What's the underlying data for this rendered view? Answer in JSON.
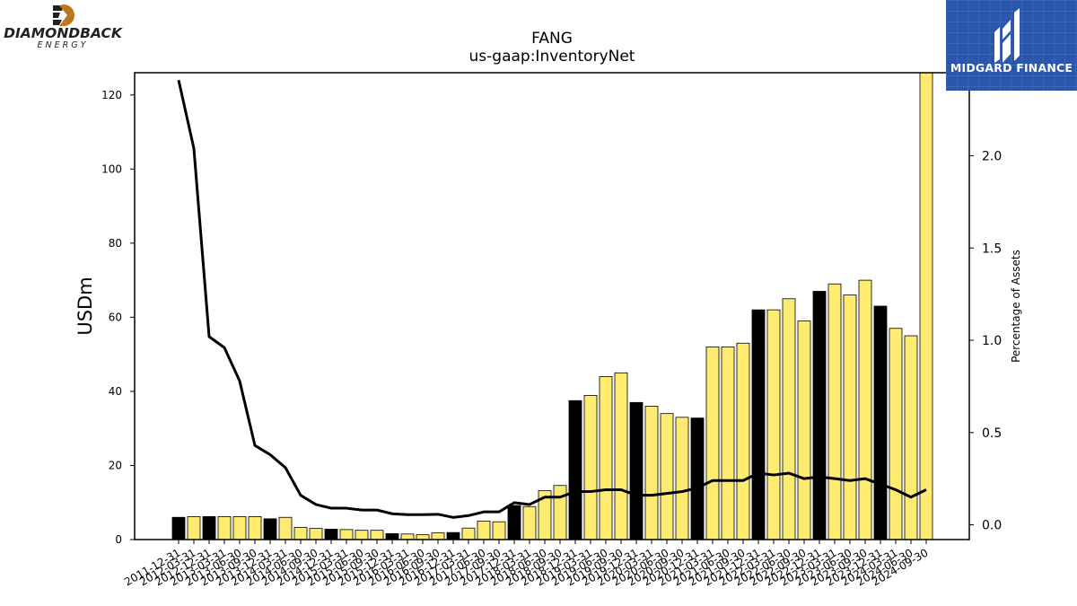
{
  "brand_left": {
    "name": "DIAMONDBACK",
    "sub": "ENERGY"
  },
  "brand_right": {
    "name": "MIDGARD FINANCE"
  },
  "chart_data": {
    "type": "bar",
    "title": "FANG",
    "subtitle": "us-gaap:InventoryNet",
    "ylabel": "USDm",
    "y2label": "Percentage of Assets",
    "ylim": [
      0,
      126
    ],
    "y2lim": [
      -0.08,
      2.45
    ],
    "yticks": [
      0,
      20,
      40,
      60,
      80,
      100,
      120
    ],
    "y2ticks": [
      0.0,
      0.5,
      1.0,
      1.5,
      2.0
    ],
    "colors": {
      "annual": "#000000",
      "quarterly": "#ffeb70",
      "line": "#000000"
    },
    "categories": [
      "2011-12-31",
      "2012-03-31",
      "2012-12-31",
      "2013-03-31",
      "2013-06-30",
      "2013-09-30",
      "2013-12-31",
      "2014-03-31",
      "2014-06-30",
      "2014-09-30",
      "2014-12-31",
      "2015-03-31",
      "2015-06-30",
      "2015-09-30",
      "2015-12-31",
      "2016-03-31",
      "2016-06-30",
      "2016-09-30",
      "2016-12-31",
      "2017-03-31",
      "2017-06-30",
      "2017-09-30",
      "2017-12-31",
      "2018-03-31",
      "2018-06-30",
      "2018-09-30",
      "2018-12-31",
      "2019-03-31",
      "2019-06-30",
      "2019-09-30",
      "2019-12-31",
      "2020-03-31",
      "2020-06-30",
      "2020-09-30",
      "2020-12-31",
      "2021-03-31",
      "2021-06-30",
      "2021-09-30",
      "2021-12-31",
      "2022-03-31",
      "2022-06-30",
      "2022-09-30",
      "2022-12-31",
      "2023-03-31",
      "2023-06-30",
      "2023-09-30",
      "2023-12-31",
      "2024-03-31",
      "2024-06-30",
      "2024-09-30"
    ],
    "values": [
      6,
      6.2,
      6.2,
      6.2,
      6.2,
      6.2,
      5.6,
      6.0,
      3.3,
      3.0,
      2.8,
      2.7,
      2.5,
      2.5,
      1.6,
      1.5,
      1.3,
      1.8,
      1.9,
      3.1,
      5.0,
      4.8,
      9.2,
      8.9,
      13.2,
      14.6,
      37.5,
      38.9,
      44.0,
      45.0,
      37.0,
      36.0,
      34.0,
      33.0,
      32.8,
      52.0,
      52.0,
      53.0,
      62.0,
      62.0,
      65.0,
      59.0,
      67.0,
      69.0,
      66.0,
      70.0,
      63.0,
      57.0,
      55.0,
      126.0
    ],
    "annual": [
      true,
      false,
      true,
      false,
      false,
      false,
      true,
      false,
      false,
      false,
      true,
      false,
      false,
      false,
      true,
      false,
      false,
      false,
      true,
      false,
      false,
      false,
      true,
      false,
      false,
      false,
      true,
      false,
      false,
      false,
      true,
      false,
      false,
      false,
      true,
      false,
      false,
      false,
      true,
      false,
      false,
      false,
      true,
      false,
      false,
      false,
      true,
      false,
      false,
      false
    ],
    "line_values": [
      2.41,
      2.04,
      1.02,
      0.96,
      0.78,
      0.43,
      0.38,
      0.31,
      0.16,
      0.11,
      0.09,
      0.09,
      0.08,
      0.08,
      0.06,
      0.055,
      0.055,
      0.057,
      0.04,
      0.05,
      0.07,
      0.07,
      0.12,
      0.11,
      0.15,
      0.15,
      0.18,
      0.18,
      0.19,
      0.19,
      0.16,
      0.16,
      0.17,
      0.18,
      0.2,
      0.24,
      0.24,
      0.24,
      0.28,
      0.27,
      0.28,
      0.25,
      0.26,
      0.25,
      0.24,
      0.25,
      0.22,
      0.19,
      0.15,
      0.19
    ]
  }
}
